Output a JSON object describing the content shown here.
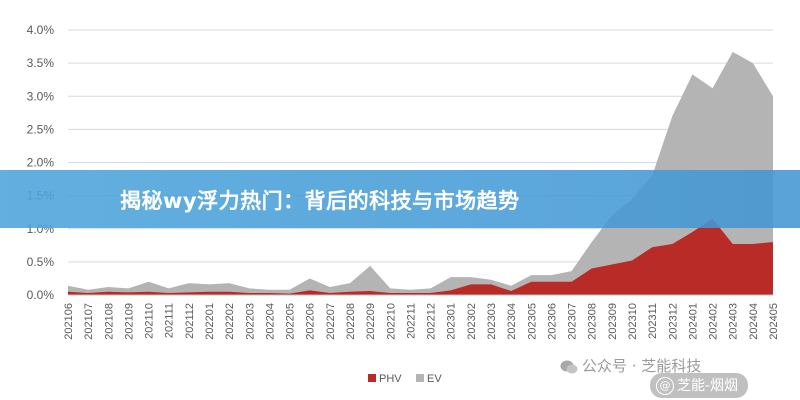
{
  "banner": {
    "title": "揭秘wy浮力热门：背后的科技与市场趋势"
  },
  "watermarks": {
    "wechat": "公众号 · 芝能科技",
    "weibo": "芝能-烟烟"
  },
  "chart_data": {
    "type": "area",
    "title": "",
    "xlabel": "",
    "ylabel": "",
    "ylim": [
      0,
      4.0
    ],
    "yticks": [
      "0.0%",
      "0.5%",
      "1.0%",
      "1.5%",
      "2.0%",
      "2.5%",
      "3.0%",
      "3.5%",
      "4.0%"
    ],
    "grid": true,
    "legend": "bottom-center",
    "colors": {
      "PHV": "#b92b27",
      "EV": "#b4b4b4"
    },
    "categories": [
      "202106",
      "202107",
      "202108",
      "202109",
      "202110",
      "202111",
      "202112",
      "202201",
      "202202",
      "202203",
      "202204",
      "202205",
      "202206",
      "202207",
      "202208",
      "202209",
      "202210",
      "202211",
      "202212",
      "202301",
      "202302",
      "202303",
      "202304",
      "202305",
      "202306",
      "202307",
      "202308",
      "202309",
      "202310",
      "202311",
      "202312",
      "202401",
      "202402",
      "202403",
      "202404",
      "202405"
    ],
    "series": [
      {
        "name": "PHV",
        "values": [
          0.05,
          0.03,
          0.05,
          0.04,
          0.05,
          0.03,
          0.04,
          0.05,
          0.05,
          0.03,
          0.03,
          0.02,
          0.07,
          0.03,
          0.05,
          0.06,
          0.03,
          0.03,
          0.03,
          0.07,
          0.16,
          0.16,
          0.06,
          0.2,
          0.2,
          0.2,
          0.4,
          0.46,
          0.52,
          0.72,
          0.77,
          0.95,
          1.15,
          0.77,
          0.77,
          0.8
        ]
      },
      {
        "name": "EV",
        "values": [
          0.14,
          0.08,
          0.12,
          0.1,
          0.2,
          0.1,
          0.18,
          0.16,
          0.18,
          0.1,
          0.08,
          0.08,
          0.25,
          0.12,
          0.18,
          0.44,
          0.1,
          0.08,
          0.1,
          0.27,
          0.27,
          0.23,
          0.14,
          0.3,
          0.3,
          0.36,
          0.8,
          1.2,
          1.45,
          1.8,
          2.7,
          3.33,
          3.12,
          3.67,
          3.5,
          3.0
        ]
      }
    ]
  }
}
